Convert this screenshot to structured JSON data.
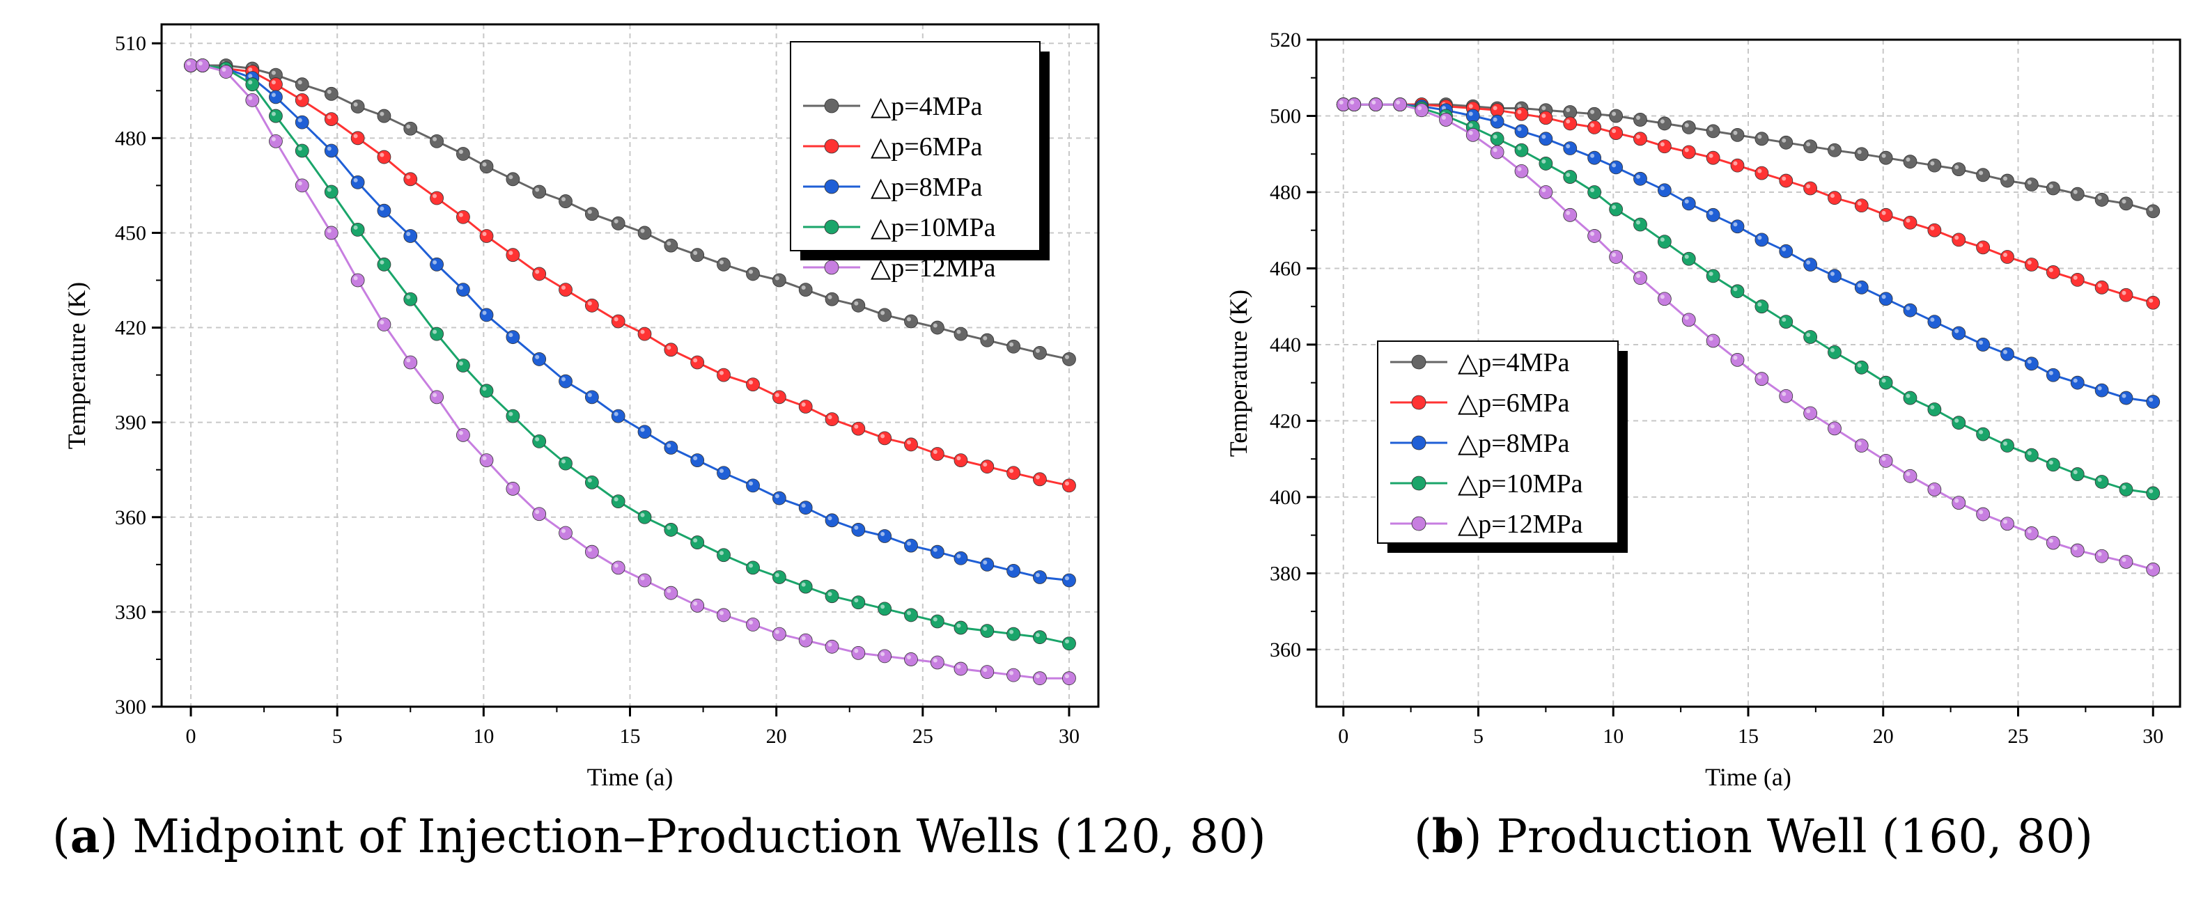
{
  "chart_data": [
    {
      "type": "line",
      "caption_letter": "a",
      "caption_text": "Midpoint of Injection–Production Wells (120, 80)",
      "xlabel": "Time (a)",
      "ylabel": "Temperature (K)",
      "xlim": [
        -1,
        31
      ],
      "ylim": [
        300,
        516
      ],
      "xticks": [
        0,
        5,
        10,
        15,
        20,
        25,
        30
      ],
      "yticks": [
        300,
        330,
        360,
        390,
        420,
        450,
        480,
        510
      ],
      "grid": true,
      "legend_position": "top-right",
      "x": [
        0,
        0.4,
        1.2,
        2.1,
        2.9,
        3.8,
        4.8,
        5.7,
        6.6,
        7.5,
        8.4,
        9.3,
        10.1,
        11.0,
        11.9,
        12.8,
        13.7,
        14.6,
        15.5,
        16.4,
        17.3,
        18.2,
        19.2,
        20.1,
        21.0,
        21.9,
        22.8,
        23.7,
        24.6,
        25.5,
        26.3,
        27.2,
        28.1,
        29.0,
        30.0
      ],
      "series": [
        {
          "name": "△p=4MPa",
          "color": "#666666",
          "values": [
            503,
            503,
            503,
            502,
            500,
            497,
            494,
            490,
            487,
            483,
            479,
            475,
            471,
            467,
            463,
            460,
            456,
            453,
            450,
            446,
            443,
            440,
            437,
            435,
            432,
            429,
            427,
            424,
            422,
            420,
            418,
            416,
            414,
            412,
            410
          ]
        },
        {
          "name": "△p=6MPa",
          "color": "#ff3333",
          "values": [
            503,
            503,
            502,
            501,
            497,
            492,
            486,
            480,
            474,
            467,
            461,
            455,
            449,
            443,
            437,
            432,
            427,
            422,
            418,
            413,
            409,
            405,
            402,
            398,
            395,
            391,
            388,
            385,
            383,
            380,
            378,
            376,
            374,
            372,
            370
          ]
        },
        {
          "name": "△p=8MPa",
          "color": "#1f5fd6",
          "values": [
            503,
            503,
            502,
            499,
            493,
            485,
            476,
            466,
            457,
            449,
            440,
            432,
            424,
            417,
            410,
            403,
            398,
            392,
            387,
            382,
            378,
            374,
            370,
            366,
            363,
            359,
            356,
            354,
            351,
            349,
            347,
            345,
            343,
            341,
            340
          ]
        },
        {
          "name": "△p=10MPa",
          "color": "#1aa56a",
          "values": [
            503,
            503,
            502,
            497,
            487,
            476,
            463,
            451,
            440,
            429,
            418,
            408,
            400,
            392,
            384,
            377,
            371,
            365,
            360,
            356,
            352,
            348,
            344,
            341,
            338,
            335,
            333,
            331,
            329,
            327,
            325,
            324,
            323,
            322,
            320
          ]
        },
        {
          "name": "△p=12MPa",
          "color": "#c77ee0",
          "values": [
            503,
            503,
            501,
            492,
            479,
            465,
            450,
            435,
            421,
            409,
            398,
            386,
            378,
            369,
            361,
            355,
            349,
            344,
            340,
            336,
            332,
            329,
            326,
            323,
            321,
            319,
            317,
            316,
            315,
            314,
            312,
            311,
            310,
            309,
            309
          ]
        }
      ]
    },
    {
      "type": "line",
      "caption_letter": "b",
      "caption_text": "Production Well (160, 80)",
      "xlabel": "Time (a)",
      "ylabel": "Temperature (K)",
      "xlim": [
        -1,
        31
      ],
      "ylim": [
        345,
        520
      ],
      "xticks": [
        0,
        5,
        10,
        15,
        20,
        25,
        30
      ],
      "yticks": [
        360,
        380,
        400,
        420,
        440,
        460,
        480,
        500,
        520
      ],
      "grid": true,
      "legend_position": "center-left",
      "x": [
        0,
        0.4,
        1.2,
        2.1,
        2.9,
        3.8,
        4.8,
        5.7,
        6.6,
        7.5,
        8.4,
        9.3,
        10.1,
        11.0,
        11.9,
        12.8,
        13.7,
        14.6,
        15.5,
        16.4,
        17.3,
        18.2,
        19.2,
        20.1,
        21.0,
        21.9,
        22.8,
        23.7,
        24.6,
        25.5,
        26.3,
        27.2,
        28.1,
        29.0,
        30.0
      ],
      "series": [
        {
          "name": "△p=4MPa",
          "color": "#666666",
          "values": [
            503,
            503,
            503,
            503,
            503,
            503,
            502.5,
            502,
            502,
            501.5,
            501,
            500.5,
            500,
            499,
            498,
            497,
            496,
            495,
            494,
            493,
            492,
            491,
            490,
            489,
            488,
            487,
            486,
            484.5,
            483,
            482,
            481,
            479.5,
            478,
            477,
            475
          ]
        },
        {
          "name": "△p=6MPa",
          "color": "#ff3333",
          "values": [
            503,
            503,
            503,
            503,
            503,
            502.5,
            502,
            501.5,
            500.5,
            499.5,
            498,
            497,
            495.5,
            494,
            492,
            490.5,
            489,
            487,
            485,
            483,
            481,
            478.5,
            476.5,
            474,
            472,
            470,
            467.5,
            465.5,
            463,
            461,
            459,
            457,
            455,
            453,
            451
          ]
        },
        {
          "name": "△p=8MPa",
          "color": "#1f5fd6",
          "values": [
            503,
            503,
            503,
            503,
            502.5,
            501.5,
            500,
            498.5,
            496,
            494,
            491.5,
            489,
            486.5,
            483.5,
            480.5,
            477,
            474,
            471,
            467.5,
            464.5,
            461,
            458,
            455,
            452,
            449,
            446,
            443,
            440,
            437.5,
            435,
            432,
            430,
            428,
            426,
            425
          ]
        },
        {
          "name": "△p=10MPa",
          "color": "#1aa56a",
          "values": [
            503,
            503,
            503,
            503,
            502,
            500,
            497,
            494,
            491,
            487.5,
            484,
            480,
            475.5,
            471.5,
            467,
            462.5,
            458,
            454,
            450,
            446,
            442,
            438,
            434,
            430,
            426,
            423,
            419.5,
            416.5,
            413.5,
            411,
            408.5,
            406,
            404,
            402,
            401
          ]
        },
        {
          "name": "△p=12MPa",
          "color": "#c77ee0",
          "values": [
            503,
            503,
            503,
            503,
            501.5,
            499,
            495,
            490.5,
            485.5,
            480,
            474,
            468.5,
            463,
            457.5,
            452,
            446.5,
            441,
            436,
            431,
            426.5,
            422,
            418,
            413.5,
            409.5,
            405.5,
            402,
            398.5,
            395.5,
            393,
            390.5,
            388,
            386,
            384.5,
            383,
            381
          ]
        }
      ]
    }
  ]
}
